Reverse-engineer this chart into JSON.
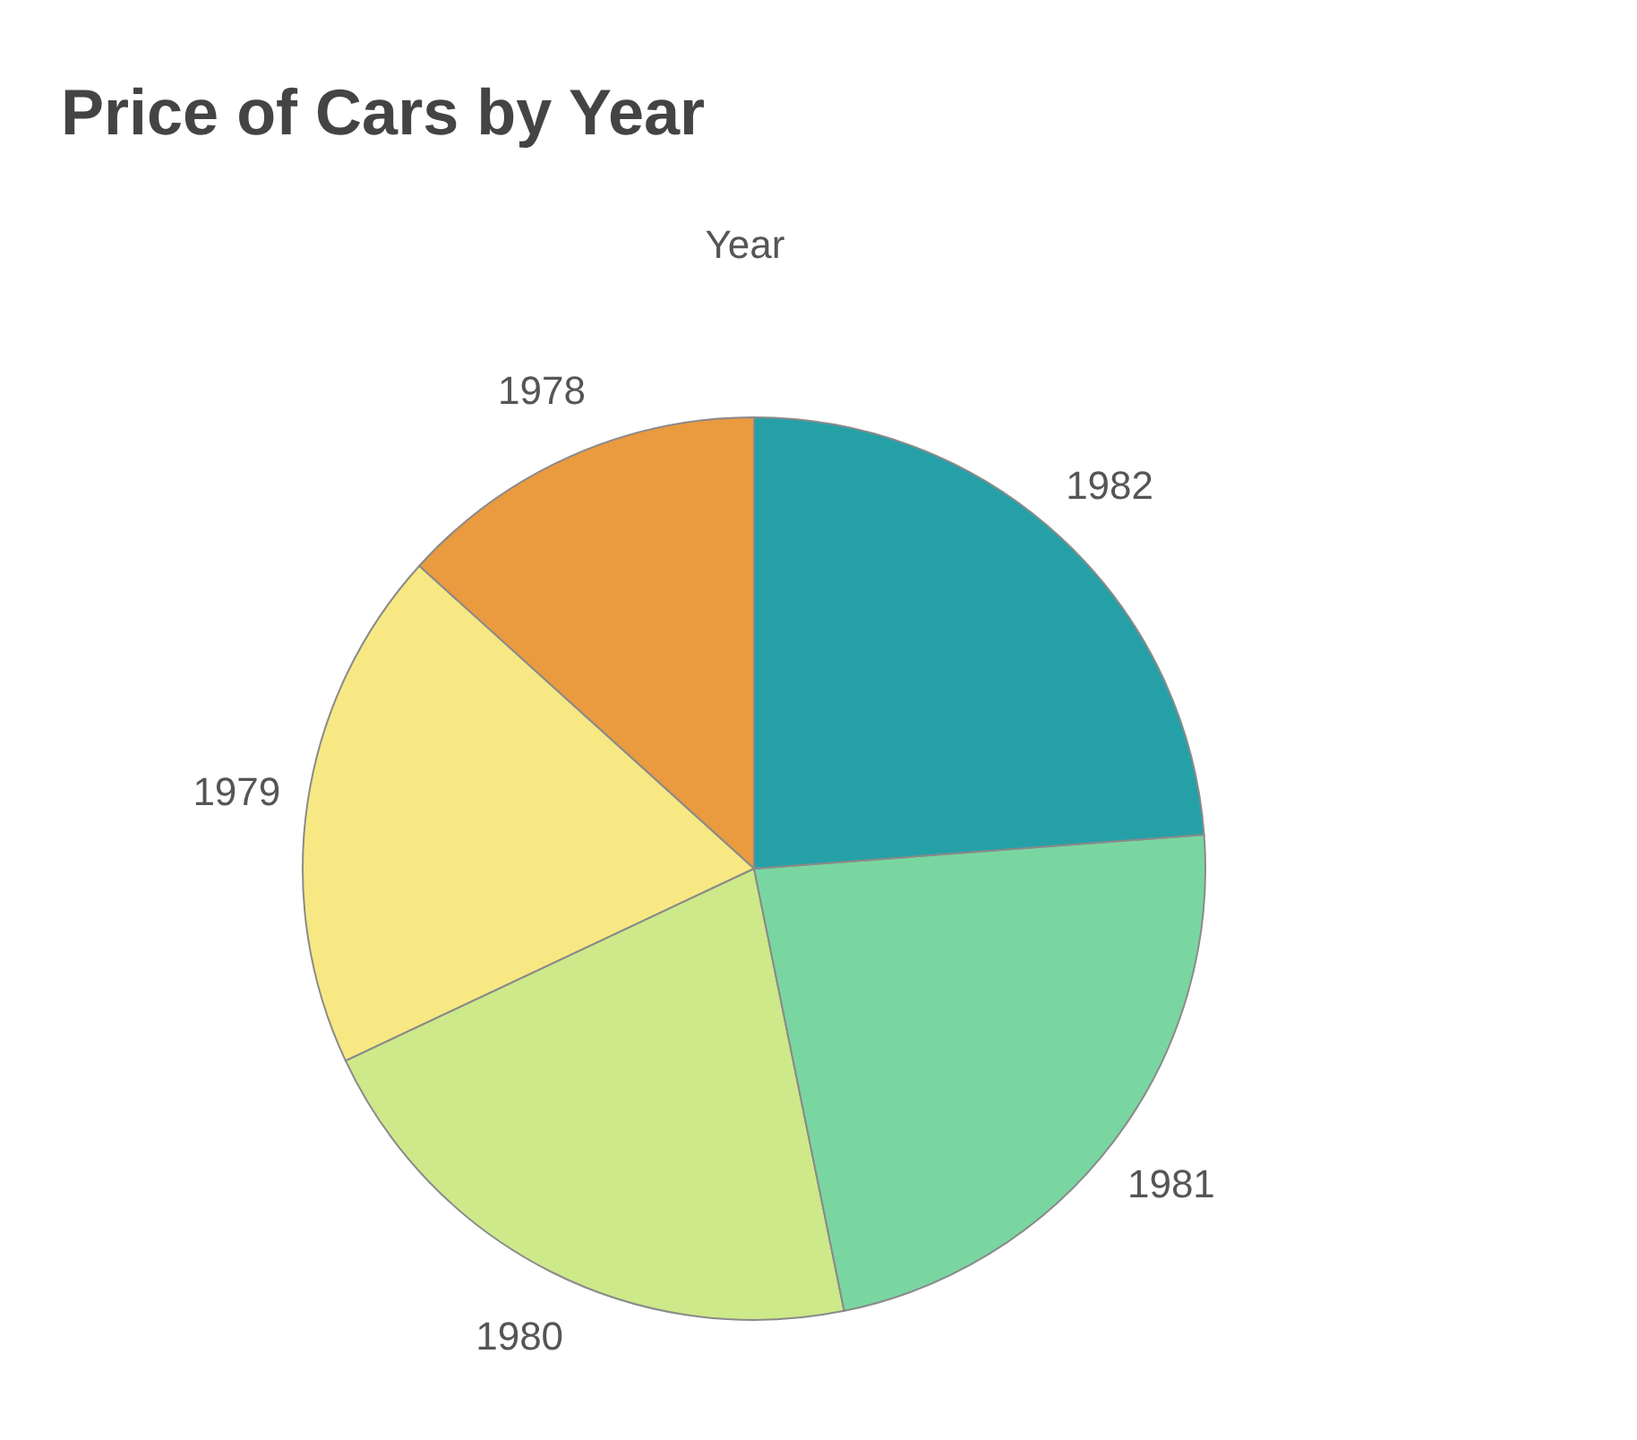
{
  "chart_data": {
    "type": "pie",
    "title": "Price of Cars by Year",
    "subtitle": "Year",
    "categories": [
      "1978",
      "1979",
      "1980",
      "1981",
      "1982"
    ],
    "values": [
      13.3,
      18.7,
      21.2,
      23.0,
      23.8
    ],
    "colors": [
      "#ea9a3f",
      "#f7e883",
      "#cde98a",
      "#7ad6a0",
      "#26a0a7"
    ]
  }
}
